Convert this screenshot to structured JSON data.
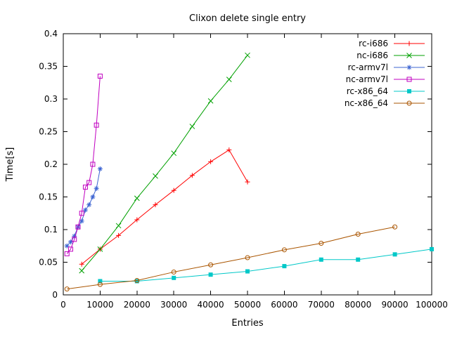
{
  "chart_data": {
    "type": "line",
    "title": "Clixon delete single entry",
    "xlabel": "Entries",
    "ylabel": "Time[s]",
    "xlim": [
      0,
      100000
    ],
    "ylim": [
      0,
      0.4
    ],
    "grid": false,
    "xticks": {
      "values": [
        0,
        10000,
        20000,
        30000,
        40000,
        50000,
        60000,
        70000,
        80000,
        90000,
        100000
      ],
      "labels": [
        "0",
        "10000",
        "20000",
        "30000",
        "40000",
        "50000",
        "60000",
        "70000",
        "80000",
        "90000",
        "100000"
      ]
    },
    "yticks": {
      "values": [
        0,
        0.05,
        0.1,
        0.15,
        0.2,
        0.25,
        0.3,
        0.35,
        0.4
      ],
      "labels": [
        "0",
        "0.05",
        "0.1",
        "0.15",
        "0.2",
        "0.25",
        "0.3",
        "0.35",
        "0.4"
      ]
    },
    "legend": {
      "position": "top-right-inside",
      "entries": [
        "rc-i686",
        "nc-i686",
        "rc-armv7l",
        "nc-armv7l",
        "rc-x86_64",
        "nc-x86_64"
      ]
    },
    "series": [
      {
        "name": "rc-i686",
        "color": "#ff0000",
        "marker": "plus",
        "x": [
          5000,
          10000,
          15000,
          20000,
          25000,
          30000,
          35000,
          40000,
          45000,
          50000
        ],
        "y": [
          0.047,
          0.07,
          0.091,
          0.115,
          0.138,
          0.16,
          0.183,
          0.204,
          0.222,
          0.173
        ]
      },
      {
        "name": "nc-i686",
        "color": "#00a000",
        "marker": "cross",
        "x": [
          5000,
          10000,
          15000,
          20000,
          25000,
          30000,
          35000,
          40000,
          45000,
          50000
        ],
        "y": [
          0.037,
          0.07,
          0.106,
          0.148,
          0.182,
          0.217,
          0.258,
          0.297,
          0.33,
          0.367
        ]
      },
      {
        "name": "rc-armv7l",
        "color": "#3c64d2",
        "marker": "asterisk",
        "x": [
          1000,
          2000,
          3000,
          4000,
          5000,
          6000,
          7000,
          8000,
          9000,
          10000
        ],
        "y": [
          0.075,
          0.081,
          0.09,
          0.104,
          0.113,
          0.13,
          0.138,
          0.15,
          0.163,
          0.193
        ]
      },
      {
        "name": "nc-armv7l",
        "color": "#c000c0",
        "marker": "square-open",
        "x": [
          1000,
          2000,
          3000,
          4000,
          5000,
          6000,
          7000,
          8000,
          9000,
          10000
        ],
        "y": [
          0.063,
          0.07,
          0.085,
          0.104,
          0.125,
          0.165,
          0.172,
          0.2,
          0.26,
          0.335
        ]
      },
      {
        "name": "rc-x86_64",
        "color": "#00c8c8",
        "marker": "square-filled",
        "x": [
          10000,
          20000,
          30000,
          40000,
          50000,
          60000,
          70000,
          80000,
          90000,
          100000
        ],
        "y": [
          0.021,
          0.021,
          0.026,
          0.031,
          0.036,
          0.044,
          0.054,
          0.054,
          0.062,
          0.07
        ]
      },
      {
        "name": "nc-x86_64",
        "color": "#aa5500",
        "marker": "circle-open",
        "x": [
          1000,
          10000,
          20000,
          30000,
          40000,
          50000,
          60000,
          70000,
          80000,
          90000
        ],
        "y": [
          0.009,
          0.016,
          0.022,
          0.035,
          0.046,
          0.057,
          0.069,
          0.079,
          0.093,
          0.104
        ]
      }
    ]
  }
}
